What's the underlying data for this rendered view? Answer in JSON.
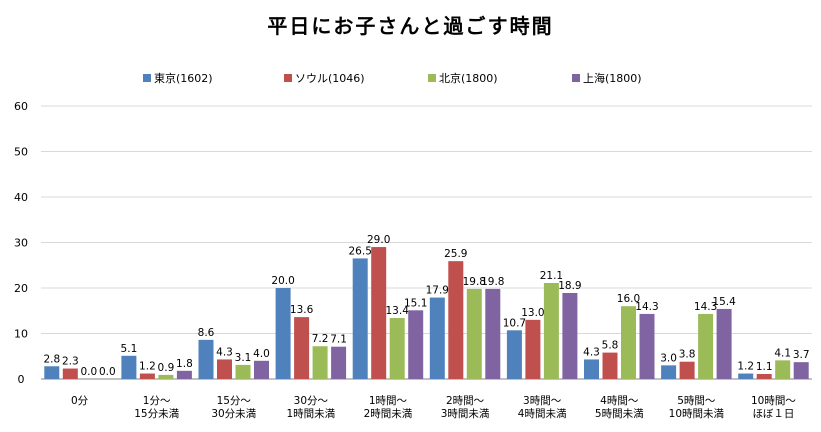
{
  "chart_data": {
    "type": "bar",
    "title": "平日にお子さんと過ごす時間",
    "xlabel": "",
    "ylabel": "",
    "ylim": [
      0,
      60
    ],
    "yticks": [
      0,
      10,
      20,
      30,
      40,
      50,
      60
    ],
    "grid": true,
    "legend_position": "top",
    "categories": [
      [
        "0分"
      ],
      [
        "1分〜",
        "15分未満"
      ],
      [
        "15分〜",
        "30分未満"
      ],
      [
        "30分〜",
        "1時間未満"
      ],
      [
        "1時間〜",
        "2時間未満"
      ],
      [
        "2時間〜",
        "3時間未満"
      ],
      [
        "3時間〜",
        "4時間未満"
      ],
      [
        "4時間〜",
        "5時間未満"
      ],
      [
        "5時間〜",
        "10時間未満"
      ],
      [
        "10時間〜",
        "ほぼ１日"
      ]
    ],
    "series": [
      {
        "name": "東京(1602)",
        "color": "#4F81BD",
        "values": [
          2.8,
          5.1,
          8.6,
          20.0,
          26.5,
          17.9,
          10.7,
          4.3,
          3.0,
          1.2
        ],
        "labels": [
          "2.8",
          "5.1",
          "8.6",
          "20.0",
          "26.5",
          "17.9",
          "10.7",
          "4.3",
          "3.0",
          "1.2"
        ]
      },
      {
        "name": "ソウル(1046)",
        "color": "#C0504D",
        "values": [
          2.3,
          1.2,
          4.3,
          13.6,
          29.0,
          25.9,
          13.0,
          5.8,
          3.8,
          1.1
        ],
        "labels": [
          "2.3",
          "1.2",
          "4.3",
          "13.6",
          "29.0",
          "25.9",
          "13.0",
          "5.8",
          "3.8",
          "1.1"
        ]
      },
      {
        "name": "北京(1800)",
        "color": "#9BBB59",
        "values": [
          0.0,
          0.9,
          3.1,
          7.2,
          13.4,
          19.8,
          21.1,
          16.0,
          14.3,
          4.1
        ],
        "labels": [
          "0.0",
          "0.9",
          "3.1",
          "7.2",
          "13.4",
          "19.8",
          "21.1",
          "16.0",
          "14.3",
          "4.1"
        ]
      },
      {
        "name": "上海(1800)",
        "color": "#8064A2",
        "values": [
          0.0,
          1.8,
          4.0,
          7.1,
          15.1,
          19.8,
          18.9,
          14.3,
          15.4,
          3.7
        ],
        "labels": [
          "0.0",
          "1.8",
          "4.0",
          "7.1",
          "15.1",
          "19.8",
          "18.9",
          "14.3",
          "15.4",
          "3.7"
        ]
      }
    ]
  }
}
